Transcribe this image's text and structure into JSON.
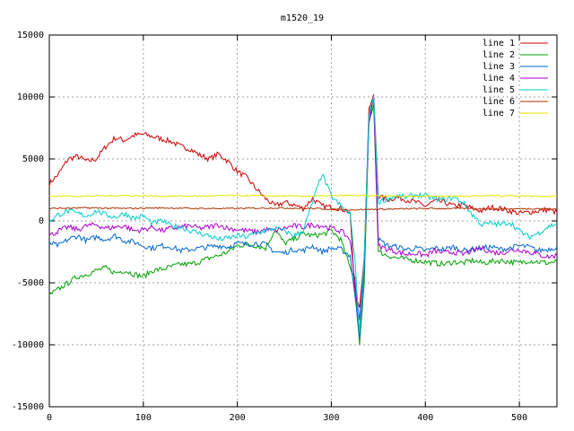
{
  "chart_data": {
    "type": "line",
    "title": "m1520_19",
    "xlabel": "",
    "ylabel": "",
    "xlim": [
      0,
      540
    ],
    "ylim": [
      -15000,
      15000
    ],
    "xticks": [
      0,
      100,
      200,
      300,
      400,
      500
    ],
    "yticks": [
      -15000,
      -10000,
      -5000,
      0,
      5000,
      10000,
      15000
    ],
    "grid": true,
    "legend_position": "top-right",
    "series": [
      {
        "name": "line 1",
        "color": "#cc0000",
        "x": [
          0,
          10,
          20,
          30,
          40,
          50,
          60,
          70,
          80,
          90,
          100,
          110,
          120,
          130,
          140,
          150,
          160,
          170,
          180,
          190,
          200,
          210,
          220,
          230,
          240,
          250,
          260,
          270,
          280,
          290,
          300,
          310,
          320,
          325,
          330,
          335,
          340,
          345,
          350,
          360,
          370,
          380,
          390,
          400,
          410,
          420,
          430,
          440,
          450,
          460,
          470,
          480,
          490,
          500,
          510,
          520,
          530,
          540
        ],
        "y": [
          3000,
          3800,
          5000,
          5200,
          4800,
          5000,
          6000,
          6700,
          6500,
          6900,
          7000,
          6800,
          6600,
          6400,
          6000,
          5800,
          5300,
          5000,
          5400,
          4800,
          4000,
          3500,
          2600,
          1800,
          1200,
          1500,
          1300,
          1000,
          1800,
          1200,
          1100,
          1000,
          700,
          -6000,
          -7000,
          -3000,
          9000,
          10200,
          2000,
          1700,
          1900,
          1700,
          1500,
          1200,
          1600,
          1500,
          1200,
          1300,
          1000,
          800,
          1100,
          1000,
          800,
          600,
          700,
          800,
          900,
          700
        ]
      },
      {
        "name": "line 2",
        "color": "#00a000",
        "x": [
          0,
          10,
          20,
          30,
          40,
          50,
          60,
          70,
          80,
          90,
          100,
          110,
          120,
          130,
          140,
          150,
          160,
          170,
          180,
          190,
          200,
          210,
          220,
          230,
          240,
          250,
          260,
          270,
          280,
          290,
          300,
          310,
          320,
          325,
          330,
          335,
          340,
          345,
          350,
          360,
          370,
          380,
          390,
          400,
          410,
          420,
          430,
          440,
          450,
          460,
          470,
          480,
          490,
          500,
          510,
          520,
          530,
          540
        ],
        "y": [
          -6000,
          -5500,
          -5000,
          -4500,
          -4300,
          -4000,
          -3800,
          -4200,
          -4000,
          -4300,
          -4500,
          -4000,
          -3900,
          -3700,
          -3500,
          -3500,
          -3300,
          -3000,
          -2800,
          -2500,
          -2000,
          -1900,
          -2000,
          -2200,
          -700,
          -1800,
          -1500,
          -1000,
          -1200,
          -1100,
          -800,
          -1500,
          -3800,
          -4500,
          -10000,
          -5000,
          8000,
          9500,
          -2500,
          -2800,
          -3000,
          -3100,
          -3200,
          -3300,
          -3400,
          -3500,
          -3300,
          -3400,
          -3200,
          -3400,
          -3300,
          -3200,
          -3300,
          -3400,
          -3200,
          -3300,
          -3400,
          -3300
        ]
      },
      {
        "name": "line 3",
        "color": "#0066cc",
        "x": [
          0,
          10,
          20,
          30,
          40,
          50,
          60,
          70,
          80,
          90,
          100,
          110,
          120,
          130,
          140,
          150,
          160,
          170,
          180,
          190,
          200,
          210,
          220,
          230,
          240,
          250,
          260,
          270,
          280,
          290,
          300,
          310,
          320,
          325,
          330,
          335,
          340,
          345,
          350,
          360,
          370,
          380,
          390,
          400,
          410,
          420,
          430,
          440,
          450,
          460,
          470,
          480,
          490,
          500,
          510,
          520,
          530,
          540
        ],
        "y": [
          -1800,
          -2000,
          -1500,
          -1200,
          -1600,
          -1300,
          -1500,
          -1200,
          -1600,
          -1700,
          -2000,
          -2200,
          -2000,
          -2100,
          -2400,
          -2300,
          -2200,
          -2100,
          -2000,
          -2100,
          -1800,
          -1900,
          -1800,
          -1900,
          -2500,
          -2600,
          -2300,
          -2400,
          -2000,
          -2500,
          -2200,
          -2300,
          -2800,
          -6000,
          -9500,
          -4000,
          8500,
          10000,
          -1500,
          -2000,
          -2100,
          -2300,
          -2200,
          -2400,
          -2200,
          -2300,
          -2100,
          -2400,
          -2300,
          -2200,
          -2100,
          -2300,
          -2200,
          -2000,
          -2100,
          -2400,
          -2300,
          -2100
        ]
      },
      {
        "name": "line 4",
        "color": "#aa00cc",
        "x": [
          0,
          10,
          20,
          30,
          40,
          50,
          60,
          70,
          80,
          90,
          100,
          110,
          120,
          130,
          140,
          150,
          160,
          170,
          180,
          190,
          200,
          210,
          220,
          230,
          240,
          250,
          260,
          270,
          280,
          290,
          300,
          310,
          320,
          325,
          330,
          335,
          340,
          345,
          350,
          360,
          370,
          380,
          390,
          400,
          410,
          420,
          430,
          440,
          450,
          460,
          470,
          480,
          490,
          500,
          510,
          520,
          530,
          540
        ],
        "y": [
          -1200,
          -800,
          -500,
          -700,
          -400,
          -300,
          -600,
          -500,
          -400,
          -800,
          -700,
          -500,
          -800,
          -600,
          -500,
          -400,
          -600,
          -500,
          -300,
          -600,
          -700,
          -800,
          -900,
          -700,
          -800,
          -600,
          -400,
          -500,
          -300,
          -400,
          -600,
          -800,
          -1500,
          -5000,
          -8000,
          -3000,
          8000,
          9800,
          -2000,
          -2300,
          -2500,
          -2700,
          -2600,
          -2800,
          -2400,
          -2600,
          -2500,
          -2700,
          -2400,
          -2200,
          -2500,
          -2600,
          -2400,
          -2300,
          -2500,
          -2700,
          -2900,
          -2800
        ]
      },
      {
        "name": "line 5",
        "color": "#00cccc",
        "x": [
          0,
          10,
          20,
          30,
          40,
          50,
          60,
          70,
          80,
          90,
          100,
          110,
          120,
          130,
          140,
          150,
          160,
          170,
          180,
          190,
          200,
          210,
          220,
          230,
          240,
          250,
          260,
          270,
          280,
          290,
          300,
          310,
          320,
          325,
          330,
          335,
          340,
          345,
          350,
          360,
          370,
          380,
          390,
          400,
          410,
          420,
          430,
          440,
          450,
          460,
          470,
          480,
          490,
          500,
          510,
          520,
          530,
          540
        ],
        "y": [
          0,
          500,
          800,
          600,
          400,
          800,
          500,
          300,
          600,
          200,
          400,
          -200,
          0,
          -400,
          -500,
          -800,
          -1000,
          -1200,
          -1500,
          -1400,
          -1200,
          -1300,
          -1000,
          -800,
          -600,
          -800,
          -1200,
          -800,
          1500,
          3800,
          2000,
          1200,
          500,
          -3000,
          -9000,
          -3000,
          8500,
          10100,
          1500,
          1800,
          2000,
          1900,
          2100,
          2000,
          1800,
          1700,
          1900,
          1500,
          500,
          -300,
          -200,
          -300,
          -100,
          -800,
          -1300,
          -1000,
          -500,
          -200
        ]
      },
      {
        "name": "line 6",
        "color": "#aa3300",
        "x": [
          0,
          40,
          80,
          120,
          160,
          200,
          240,
          280,
          320,
          360,
          400,
          440,
          480,
          520,
          540
        ],
        "y": [
          1000,
          1050,
          1000,
          1050,
          1000,
          1000,
          1050,
          1000,
          900,
          950,
          1000,
          1000,
          950,
          1000,
          950
        ]
      },
      {
        "name": "line 7",
        "color": "#e6e600",
        "x": [
          0,
          40,
          80,
          120,
          160,
          200,
          240,
          280,
          320,
          360,
          400,
          440,
          480,
          520,
          540
        ],
        "y": [
          2000,
          2000,
          2050,
          2000,
          2000,
          2050,
          2000,
          2000,
          2050,
          2000,
          2000,
          2000,
          2050,
          2000,
          2000
        ]
      }
    ]
  }
}
